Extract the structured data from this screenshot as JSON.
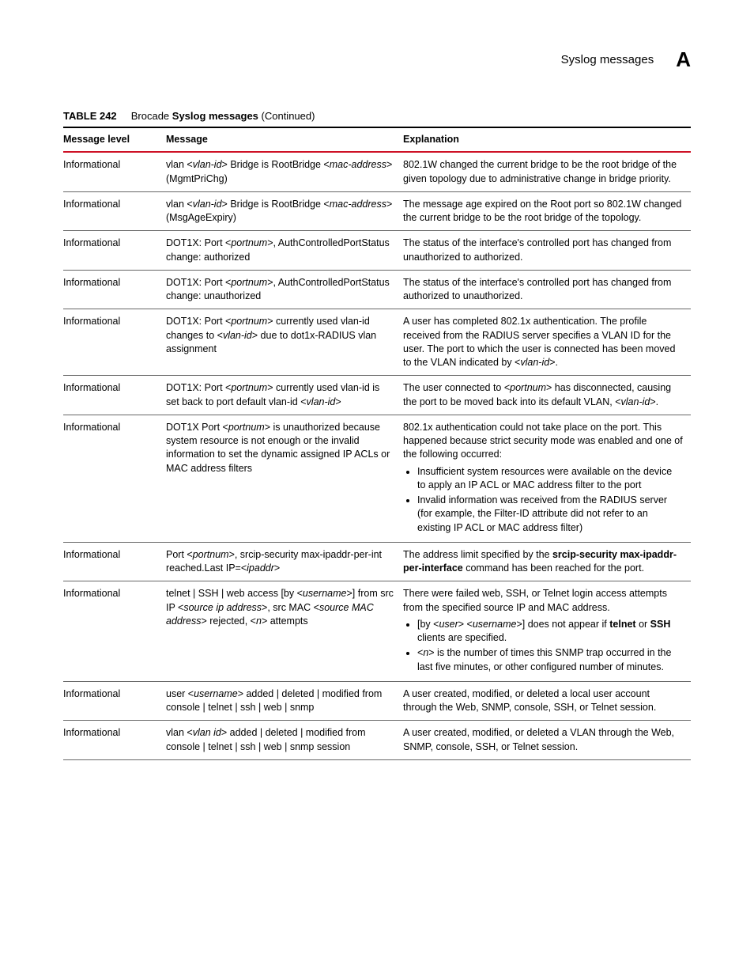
{
  "header": {
    "title": "Syslog messages",
    "appendix": "A"
  },
  "table": {
    "caption_label": "TABLE 242",
    "caption_pre": "Brocade ",
    "caption_bold": "Syslog messages",
    "caption_post": "  (Continued)",
    "columns": {
      "level": "Message level",
      "message": "Message",
      "explanation": "Explanation"
    },
    "rows": [
      {
        "level": "Informational",
        "msg_segments": [
          {
            "t": "vlan <"
          },
          {
            "t": "vlan-id",
            "i": true
          },
          {
            "t": "> Bridge is RootBridge <"
          },
          {
            "t": "mac-address",
            "i": true
          },
          {
            "t": "> (MgmtPriChg)"
          }
        ],
        "exp_intro": "802.1W changed the current bridge to be the root bridge of the given topology due to administrative change in bridge priority."
      },
      {
        "level": "Informational",
        "msg_segments": [
          {
            "t": "vlan <"
          },
          {
            "t": "vlan-id",
            "i": true
          },
          {
            "t": "> Bridge is RootBridge <"
          },
          {
            "t": "mac-address",
            "i": true
          },
          {
            "t": "> (MsgAgeExpiry)"
          }
        ],
        "exp_intro": "The message age expired on the Root port so 802.1W changed the current bridge to be the root bridge of the topology."
      },
      {
        "level": "Informational",
        "msg_segments": [
          {
            "t": "DOT1X: Port <"
          },
          {
            "t": "portnum",
            "i": true
          },
          {
            "t": ">, AuthControlledPortStatus change: authorized"
          }
        ],
        "exp_intro": "The status of the interface's controlled port has changed from unauthorized to authorized."
      },
      {
        "level": "Informational",
        "msg_segments": [
          {
            "t": "DOT1X: Port <"
          },
          {
            "t": "portnum",
            "i": true
          },
          {
            "t": ">, AuthControlledPortStatus change: unauthorized"
          }
        ],
        "exp_intro": "The status of the interface's controlled port has changed from authorized to unauthorized."
      },
      {
        "level": "Informational",
        "msg_segments": [
          {
            "t": "DOT1X: Port <"
          },
          {
            "t": "portnum",
            "i": true
          },
          {
            "t": "> currently used vlan-id changes to <"
          },
          {
            "t": "vlan-id",
            "i": true
          },
          {
            "t": "> due to dot1x-RADIUS vlan assignment"
          }
        ],
        "exp_segments": [
          {
            "t": "A user has completed 802.1x authentication. The profile received from the RADIUS server specifies a VLAN ID for the user.  The port to which the user is connected has been moved to the VLAN indicated by <"
          },
          {
            "t": "vlan-id",
            "i": true
          },
          {
            "t": ">."
          }
        ]
      },
      {
        "level": "Informational",
        "msg_segments": [
          {
            "t": "DOT1X: Port <"
          },
          {
            "t": "portnum",
            "i": true
          },
          {
            "t": "> currently used vlan-id is set back to port default vlan-id <"
          },
          {
            "t": "vlan-id",
            "i": true
          },
          {
            "t": ">"
          }
        ],
        "exp_segments": [
          {
            "t": "The user connected to <"
          },
          {
            "t": "portnum",
            "i": true
          },
          {
            "t": "> has disconnected, causing the port to be moved back into its default VLAN, <"
          },
          {
            "t": "vlan-id",
            "i": true
          },
          {
            "t": ">."
          }
        ]
      },
      {
        "level": "Informational",
        "msg_segments": [
          {
            "t": "DOT1X Port <"
          },
          {
            "t": "portnum",
            "i": true
          },
          {
            "t": ">  is unauthorized because system resource is not enough or the invalid information to set the dynamic assigned IP ACLs or MAC address filters"
          }
        ],
        "exp_intro": "802.1x authentication could not take place on the port.  This happened because strict security mode was enabled and one of the following occurred:",
        "exp_bullets_plain": [
          "Insufficient system resources were available on the device to apply an IP ACL or MAC address filter to the port",
          "Invalid information was received from the RADIUS server (for example, the Filter-ID attribute did not refer to an existing IP ACL or MAC address filter)"
        ]
      },
      {
        "level": "Informational",
        "msg_segments": [
          {
            "t": "Port <"
          },
          {
            "t": "portnum",
            "i": true
          },
          {
            "t": ">, srcip-security max-ipaddr-per-int reached.Last IP=<"
          },
          {
            "t": "ipaddr",
            "i": true
          },
          {
            "t": ">"
          }
        ],
        "exp_segments": [
          {
            "t": "The address limit specified by the "
          },
          {
            "t": "srcip-security max-ipaddr-per-interface",
            "b": true
          },
          {
            "t": " command has been reached for the port."
          }
        ]
      },
      {
        "level": "Informational",
        "msg_segments": [
          {
            "t": "telnet | SSH | web access [by <"
          },
          {
            "t": "username",
            "i": true
          },
          {
            "t": ">] from src IP <"
          },
          {
            "t": "source ip address",
            "i": true
          },
          {
            "t": ">, src MAC <"
          },
          {
            "t": "source MAC address",
            "i": true
          },
          {
            "t": "> rejected, <"
          },
          {
            "t": "n",
            "i": true
          },
          {
            "t": "> attempts"
          }
        ],
        "exp_intro": "There were failed web, SSH, or Telnet login access attempts from the specified source IP and MAC address.",
        "exp_bullets_rich": [
          [
            {
              "t": "[by <"
            },
            {
              "t": "user",
              "i": true
            },
            {
              "t": "> <"
            },
            {
              "t": "username",
              "i": true
            },
            {
              "t": ">] does not appear if "
            },
            {
              "t": "telnet",
              "b": true
            },
            {
              "t": " or "
            },
            {
              "t": "SSH",
              "b": true
            },
            {
              "t": " clients are specified."
            }
          ],
          [
            {
              "t": "<"
            },
            {
              "t": "n",
              "i": true
            },
            {
              "t": "> is the number of times this SNMP trap occurred in the last five minutes, or other configured number of minutes."
            }
          ]
        ]
      },
      {
        "level": "Informational",
        "msg_segments": [
          {
            "t": "user <"
          },
          {
            "t": "username",
            "i": true
          },
          {
            "t": "> added | deleted | modified from console | telnet | ssh | web | snmp"
          }
        ],
        "exp_intro": "A user created, modified, or deleted a local user account through the Web, SNMP, console, SSH, or Telnet session."
      },
      {
        "level": "Informational",
        "msg_segments": [
          {
            "t": "vlan <"
          },
          {
            "t": "vlan id",
            "i": true
          },
          {
            "t": "> added | deleted | modified from console | telnet | ssh | web | snmp session"
          }
        ],
        "exp_intro": "A user created, modified, or deleted a VLAN through the Web, SNMP, console, SSH, or Telnet session."
      }
    ]
  }
}
